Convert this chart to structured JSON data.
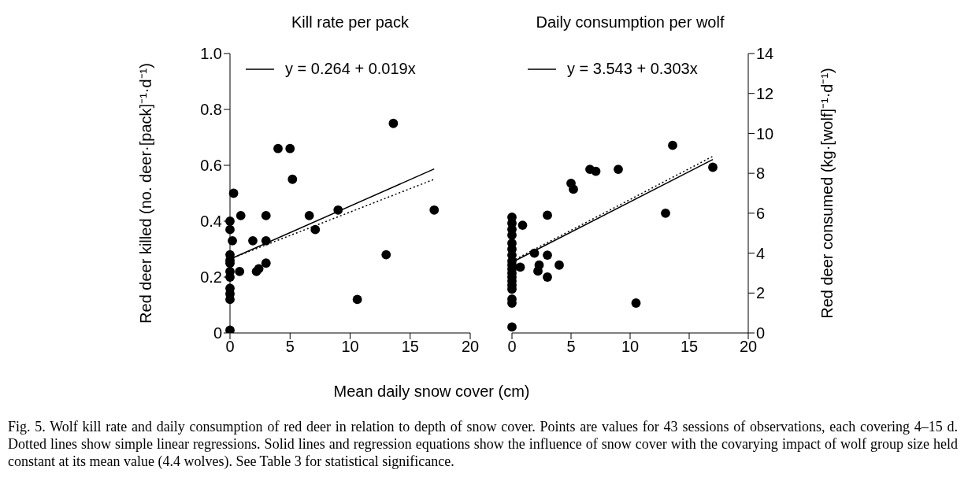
{
  "chart_data": [
    {
      "type": "scatter",
      "title": "Kill rate per pack",
      "xlabel": "Mean daily snow cover (cm)",
      "ylabel": "Red deer killed (no. deer·[pack]⁻¹·d⁻¹)",
      "xlim": [
        0,
        20
      ],
      "xticks": [
        0,
        5,
        10,
        15,
        20
      ],
      "ylim": [
        0,
        1
      ],
      "yticks": [
        0,
        0.2,
        0.4,
        0.6,
        0.8,
        {
          "value": 1,
          "label": "1.0"
        }
      ],
      "legend": "top left",
      "annotations": [
        "Fig. 5. Wolf kill rate and daily consumption of red deer in relation to depth of snow cover. Points are values for 43 sessions of observations, each covering 4–15 d. Dotted lines show simple linear regressions. Solid lines and regression equations show the influence of snow cover with the covarying impact of wolf group size held constant at its mean value (4.4 wolves). See Table 3 for statistical significance."
      ],
      "series": [
        {
          "type": "scatter",
          "marker": "circle",
          "color": "#000000",
          "x": [
            0,
            0,
            0,
            0,
            0,
            0,
            0,
            0,
            0,
            0.2,
            0,
            0,
            0.3,
            0.9,
            0.8,
            1.9,
            2.2,
            2.4,
            3,
            3,
            3,
            4,
            5,
            5.2,
            6.6,
            7.1,
            9,
            10.6,
            13,
            13.6,
            17
          ],
          "values": [
            0.01,
            0.12,
            0.14,
            0.16,
            0.2,
            0.22,
            0.25,
            0.26,
            0.28,
            0.33,
            0.37,
            0.4,
            0.5,
            0.42,
            0.22,
            0.33,
            0.22,
            0.23,
            0.42,
            0.33,
            0.25,
            0.66,
            0.66,
            0.55,
            0.42,
            0.37,
            0.44,
            0.12,
            0.28,
            0.75,
            0.44
          ]
        },
        {
          "type": "line",
          "name": "y = 0.264 + 0.019x",
          "color": "#000000",
          "line_style": "solid",
          "x": [
            0,
            17
          ],
          "values": [
            0.264,
            0.587
          ]
        },
        {
          "type": "line",
          "color": "#000000",
          "line_style": "dotted",
          "x": [
            0,
            17
          ],
          "values": [
            0.265,
            0.55
          ]
        }
      ]
    },
    {
      "type": "scatter",
      "title": "Daily consumption per wolf",
      "y2label": "Red deer consumed (kg·[wolf]⁻¹·d⁻¹)",
      "xlim": [
        0,
        20
      ],
      "xticks": [
        0,
        5,
        10,
        15,
        20
      ],
      "y2lim": [
        0,
        14
      ],
      "y2ticks": [
        0,
        2,
        4,
        6,
        8,
        10,
        12,
        14
      ],
      "legend": "top left",
      "series": [
        {
          "type": "scatter",
          "marker": "circle",
          "axis": "y2",
          "color": "#000000",
          "x": [
            0,
            0,
            0,
            0,
            0,
            0,
            0,
            0,
            0,
            0,
            0,
            0,
            0,
            0,
            0,
            0,
            0,
            0,
            0.7,
            0.9,
            1.9,
            2.3,
            2.2,
            3,
            3,
            3,
            4,
            5,
            5.2,
            6.6,
            7.1,
            9,
            10.5,
            13,
            13.6,
            17
          ],
          "values": [
            0.3,
            1.5,
            1.7,
            2.2,
            2.4,
            2.6,
            2.8,
            3.0,
            3.2,
            3.4,
            3.6,
            3.9,
            4.2,
            4.5,
            4.9,
            5.2,
            5.5,
            5.8,
            3.3,
            5.4,
            4.0,
            3.4,
            3.1,
            5.9,
            3.9,
            2.8,
            3.4,
            7.5,
            7.2,
            8.2,
            8.1,
            8.2,
            1.5,
            6.0,
            9.4,
            8.3
          ]
        },
        {
          "type": "line",
          "axis": "y2",
          "name": "y = 3.543 + 0.303x",
          "color": "#000000",
          "line_style": "solid",
          "x": [
            0,
            17
          ],
          "values": [
            3.54,
            8.69
          ]
        },
        {
          "type": "line",
          "axis": "y2",
          "color": "#000000",
          "line_style": "dotted",
          "x": [
            0,
            17
          ],
          "values": [
            3.6,
            8.85
          ]
        }
      ]
    }
  ]
}
